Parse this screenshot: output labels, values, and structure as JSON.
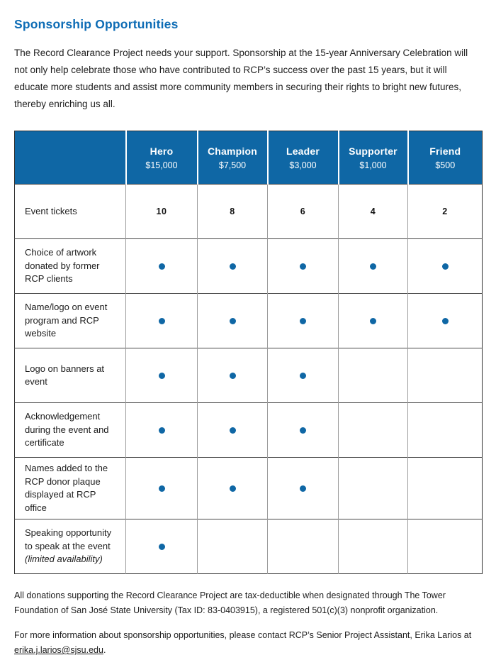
{
  "page": {
    "title": "Sponsorship Opportunities",
    "intro": "The Record Clearance Project needs your support. Sponsorship at the 15-year Anniversary Celebration will not only help celebrate those who have contributed to RCP’s success over the past 15 years, but it will educate more students and assist more community members in securing their rights to bright new futures, thereby enriching us all."
  },
  "colors": {
    "title_blue": "#0d6cb5",
    "header_blue": "#0f67a5",
    "dot_blue": "#0f67a5",
    "body_text": "#1c1c1c"
  },
  "table": {
    "tiers": [
      {
        "name": "Hero",
        "amount": "$15,000"
      },
      {
        "name": "Champion",
        "amount": "$7,500"
      },
      {
        "name": "Leader",
        "amount": "$3,000"
      },
      {
        "name": "Supporter",
        "amount": "$1,000"
      },
      {
        "name": "Friend",
        "amount": "$500"
      }
    ],
    "rows": [
      {
        "label": "Event tickets",
        "note": "",
        "cells": [
          "10",
          "8",
          "6",
          "4",
          "2"
        ]
      },
      {
        "label": "Choice of artwork donated by former RCP clients",
        "note": "",
        "cells": [
          "dot",
          "dot",
          "dot",
          "dot",
          "dot"
        ]
      },
      {
        "label": "Name/logo on event program and RCP website",
        "note": "",
        "cells": [
          "dot",
          "dot",
          "dot",
          "dot",
          "dot"
        ]
      },
      {
        "label": "Logo on banners at event",
        "note": "",
        "cells": [
          "dot",
          "dot",
          "dot",
          "",
          ""
        ]
      },
      {
        "label": "Acknowledgement during the event and certificate",
        "note": "",
        "cells": [
          "dot",
          "dot",
          "dot",
          "",
          ""
        ]
      },
      {
        "label": "Names added to the RCP donor plaque displayed at RCP office",
        "note": "",
        "cells": [
          "dot",
          "dot",
          "dot",
          "",
          ""
        ]
      },
      {
        "label": "Speaking opportunity to speak at the event",
        "note": "(limited availability)",
        "cells": [
          "dot",
          "",
          "",
          "",
          ""
        ]
      }
    ]
  },
  "footer": {
    "tax_note": "All donations supporting the Record Clearance Project are tax-deductible when designated through The Tower Foundation of San José State University (Tax ID: 83-0403915), a registered 501(c)(3) nonprofit organization.",
    "contact_prefix": "For more information about sponsorship opportunities, please contact RCP’s Senior Project Assistant, Erika Larios at ",
    "contact_email": "erika.j.larios@sjsu.edu",
    "contact_suffix": "."
  }
}
